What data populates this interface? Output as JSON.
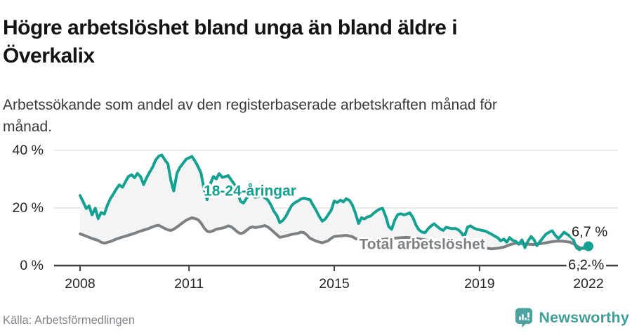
{
  "title": {
    "line1": "Högre arbetslöshet bland unga än bland äldre i",
    "line2": "Överkalix"
  },
  "subtitle": {
    "line1": "Arbetssökande som andel av den registerbaserade arbetskraften månad för",
    "line2": "månad."
  },
  "footer": {
    "source": "Källa: Arbetsförmedlingen",
    "brand": "Newsworthy",
    "brand_color": "#3f9e9a",
    "brand_icon": "newsworthy-pin-barchart-icon",
    "brand_icon_color": "#4aa3a0"
  },
  "colors": {
    "young_line": "#12a192",
    "total_line": "#7d8184",
    "between_area": "#f4f4f5",
    "grid": "#e3e3e3",
    "axis": "#404040",
    "tick_text": "#262626",
    "end_label_text": "#1c1c1c"
  },
  "chart_data": {
    "type": "line",
    "y_unit": "%",
    "grid": "horizontal",
    "legend_position": "inline-labels",
    "xlim": [
      2008,
      2022.1
    ],
    "ylim": [
      0,
      44
    ],
    "x_tick_values": [
      2008,
      2011,
      2015,
      2019,
      2022
    ],
    "x_tick_labels": [
      "2008",
      "2011",
      "2015",
      "2019",
      "2022"
    ],
    "y_tick_values": [
      0,
      20,
      40
    ],
    "y_tick_labels": [
      "0 %",
      "20 %",
      "40 %"
    ],
    "fill_between_series": true,
    "series": [
      {
        "name": "18-24-åringar",
        "color": "#12a192",
        "end_label": "6,7 %",
        "end_value": 6.7,
        "end_dot": true,
        "end_label_offset": [
          -24,
          -14
        ],
        "label_pos": {
          "x": 2012.68,
          "y": 25.9
        },
        "points": [
          [
            2008.0,
            24.3
          ],
          [
            2008.08,
            22.3
          ],
          [
            2008.17,
            19.8
          ],
          [
            2008.25,
            20.7
          ],
          [
            2008.33,
            17.6
          ],
          [
            2008.42,
            19.9
          ],
          [
            2008.5,
            16.3
          ],
          [
            2008.58,
            18.4
          ],
          [
            2008.67,
            17.9
          ],
          [
            2008.75,
            20.9
          ],
          [
            2008.83,
            23.1
          ],
          [
            2008.92,
            24.9
          ],
          [
            2009.0,
            26.6
          ],
          [
            2009.08,
            28.0
          ],
          [
            2009.17,
            27.2
          ],
          [
            2009.25,
            29.1
          ],
          [
            2009.33,
            30.9
          ],
          [
            2009.42,
            31.5
          ],
          [
            2009.5,
            30.5
          ],
          [
            2009.58,
            32.0
          ],
          [
            2009.67,
            30.8
          ],
          [
            2009.75,
            28.1
          ],
          [
            2009.83,
            30.4
          ],
          [
            2009.92,
            32.5
          ],
          [
            2010.0,
            34.2
          ],
          [
            2010.08,
            36.6
          ],
          [
            2010.17,
            38.0
          ],
          [
            2010.25,
            38.4
          ],
          [
            2010.33,
            36.8
          ],
          [
            2010.42,
            35.3
          ],
          [
            2010.5,
            29.6
          ],
          [
            2010.58,
            25.9
          ],
          [
            2010.67,
            32.1
          ],
          [
            2010.75,
            34.1
          ],
          [
            2010.83,
            35.4
          ],
          [
            2010.92,
            36.9
          ],
          [
            2011.0,
            37.4
          ],
          [
            2011.08,
            37.9
          ],
          [
            2011.17,
            36.2
          ],
          [
            2011.25,
            34.3
          ],
          [
            2011.33,
            32.1
          ],
          [
            2011.42,
            26.2
          ],
          [
            2011.5,
            22.9
          ],
          [
            2011.58,
            28.1
          ],
          [
            2011.67,
            30.9
          ],
          [
            2011.75,
            30.1
          ],
          [
            2011.83,
            31.9
          ],
          [
            2011.92,
            30.6
          ],
          [
            2012.0,
            30.9
          ],
          [
            2012.08,
            31.2
          ],
          [
            2012.17,
            29.6
          ],
          [
            2012.25,
            28.2
          ],
          [
            2012.33,
            25.6
          ],
          [
            2012.42,
            22.3
          ],
          [
            2012.5,
            21.7
          ],
          [
            2012.58,
            23.3
          ],
          [
            2012.67,
            24.6
          ],
          [
            2012.75,
            24.1
          ],
          [
            2012.83,
            23.7
          ],
          [
            2012.92,
            24.0
          ],
          [
            2013.0,
            24.2
          ],
          [
            2013.08,
            23.6
          ],
          [
            2013.17,
            22.8
          ],
          [
            2013.25,
            21.2
          ],
          [
            2013.33,
            19.0
          ],
          [
            2013.42,
            17.4
          ],
          [
            2013.5,
            14.9
          ],
          [
            2013.58,
            15.6
          ],
          [
            2013.67,
            17.1
          ],
          [
            2013.75,
            19.1
          ],
          [
            2013.83,
            20.9
          ],
          [
            2013.92,
            21.9
          ],
          [
            2014.0,
            22.4
          ],
          [
            2014.08,
            23.1
          ],
          [
            2014.17,
            23.4
          ],
          [
            2014.25,
            23.1
          ],
          [
            2014.33,
            22.9
          ],
          [
            2014.42,
            20.9
          ],
          [
            2014.5,
            19.2
          ],
          [
            2014.58,
            17.2
          ],
          [
            2014.67,
            15.4
          ],
          [
            2014.75,
            16.1
          ],
          [
            2014.83,
            17.6
          ],
          [
            2014.92,
            19.3
          ],
          [
            2015.0,
            22.4
          ],
          [
            2015.08,
            21.9
          ],
          [
            2015.17,
            22.7
          ],
          [
            2015.25,
            22.1
          ],
          [
            2015.33,
            23.2
          ],
          [
            2015.42,
            22.6
          ],
          [
            2015.5,
            21.0
          ],
          [
            2015.58,
            18.3
          ],
          [
            2015.67,
            14.6
          ],
          [
            2015.75,
            16.6
          ],
          [
            2015.83,
            16.2
          ],
          [
            2015.92,
            16.9
          ],
          [
            2016.0,
            17.2
          ],
          [
            2016.08,
            18.1
          ],
          [
            2016.17,
            19.0
          ],
          [
            2016.25,
            19.6
          ],
          [
            2016.33,
            19.9
          ],
          [
            2016.42,
            17.0
          ],
          [
            2016.5,
            13.5
          ],
          [
            2016.58,
            12.6
          ],
          [
            2016.67,
            15.9
          ],
          [
            2016.75,
            17.7
          ],
          [
            2016.83,
            18.0
          ],
          [
            2016.92,
            17.6
          ],
          [
            2017.0,
            17.9
          ],
          [
            2017.08,
            18.3
          ],
          [
            2017.17,
            16.6
          ],
          [
            2017.25,
            14.1
          ],
          [
            2017.33,
            12.4
          ],
          [
            2017.42,
            11.6
          ],
          [
            2017.5,
            11.4
          ],
          [
            2017.58,
            12.7
          ],
          [
            2017.67,
            13.8
          ],
          [
            2017.75,
            14.5
          ],
          [
            2017.83,
            13.6
          ],
          [
            2017.92,
            12.7
          ],
          [
            2018.0,
            12.2
          ],
          [
            2018.08,
            13.3
          ],
          [
            2018.17,
            13.0
          ],
          [
            2018.25,
            12.8
          ],
          [
            2018.33,
            12.9
          ],
          [
            2018.42,
            12.4
          ],
          [
            2018.5,
            11.4
          ],
          [
            2018.58,
            9.9
          ],
          [
            2018.67,
            13.3
          ],
          [
            2018.75,
            13.8
          ],
          [
            2018.83,
            13.1
          ],
          [
            2018.92,
            12.6
          ],
          [
            2019.0,
            12.4
          ],
          [
            2019.08,
            12.2
          ],
          [
            2019.17,
            11.9
          ],
          [
            2019.25,
            11.4
          ],
          [
            2019.33,
            10.9
          ],
          [
            2019.42,
            10.2
          ],
          [
            2019.5,
            9.7
          ],
          [
            2019.58,
            8.6
          ],
          [
            2019.67,
            9.2
          ],
          [
            2019.75,
            8.1
          ],
          [
            2019.83,
            9.7
          ],
          [
            2019.92,
            8.7
          ],
          [
            2020.0,
            8.4
          ],
          [
            2020.08,
            7.4
          ],
          [
            2020.17,
            8.9
          ],
          [
            2020.25,
            6.2
          ],
          [
            2020.33,
            8.4
          ],
          [
            2020.42,
            10.1
          ],
          [
            2020.5,
            9.0
          ],
          [
            2020.58,
            6.9
          ],
          [
            2020.67,
            8.4
          ],
          [
            2020.75,
            9.7
          ],
          [
            2020.83,
            10.9
          ],
          [
            2020.92,
            11.6
          ],
          [
            2021.0,
            12.1
          ],
          [
            2021.08,
            10.6
          ],
          [
            2021.17,
            9.4
          ],
          [
            2021.25,
            10.4
          ],
          [
            2021.33,
            11.6
          ],
          [
            2021.42,
            10.8
          ],
          [
            2021.5,
            10.1
          ],
          [
            2021.58,
            9.1
          ],
          [
            2021.67,
            6.2
          ],
          [
            2021.75,
            5.5
          ],
          [
            2021.83,
            6.1
          ],
          [
            2021.92,
            6.3
          ],
          [
            2022.0,
            6.7
          ]
        ]
      },
      {
        "name": "Total arbetslöshet",
        "color": "#7d8184",
        "end_label": "6,2 %",
        "end_value": 6.2,
        "end_dot": false,
        "end_label_offset": [
          -33,
          31
        ],
        "label_pos": {
          "x": 2017.42,
          "y": 7.3
        },
        "points": [
          [
            2008.0,
            11.0
          ],
          [
            2008.17,
            10.2
          ],
          [
            2008.33,
            9.4
          ],
          [
            2008.5,
            8.7
          ],
          [
            2008.58,
            8.1
          ],
          [
            2008.67,
            7.8
          ],
          [
            2008.83,
            8.3
          ],
          [
            2009.0,
            9.2
          ],
          [
            2009.17,
            9.9
          ],
          [
            2009.33,
            10.5
          ],
          [
            2009.5,
            11.2
          ],
          [
            2009.67,
            12.0
          ],
          [
            2009.83,
            12.6
          ],
          [
            2010.0,
            13.4
          ],
          [
            2010.08,
            13.8
          ],
          [
            2010.17,
            14.0
          ],
          [
            2010.25,
            13.4
          ],
          [
            2010.33,
            12.9
          ],
          [
            2010.42,
            12.4
          ],
          [
            2010.5,
            12.2
          ],
          [
            2010.58,
            12.6
          ],
          [
            2010.67,
            13.4
          ],
          [
            2010.83,
            14.9
          ],
          [
            2010.92,
            15.7
          ],
          [
            2011.0,
            16.2
          ],
          [
            2011.08,
            16.6
          ],
          [
            2011.17,
            16.3
          ],
          [
            2011.25,
            15.9
          ],
          [
            2011.33,
            14.8
          ],
          [
            2011.42,
            13.0
          ],
          [
            2011.5,
            11.9
          ],
          [
            2011.58,
            11.7
          ],
          [
            2011.67,
            12.1
          ],
          [
            2011.75,
            12.6
          ],
          [
            2011.83,
            12.8
          ],
          [
            2011.92,
            13.0
          ],
          [
            2012.0,
            13.3
          ],
          [
            2012.08,
            13.8
          ],
          [
            2012.17,
            13.4
          ],
          [
            2012.25,
            12.6
          ],
          [
            2012.33,
            11.7
          ],
          [
            2012.42,
            11.1
          ],
          [
            2012.5,
            11.4
          ],
          [
            2012.58,
            12.2
          ],
          [
            2012.67,
            13.1
          ],
          [
            2012.75,
            13.4
          ],
          [
            2012.83,
            13.2
          ],
          [
            2012.92,
            13.4
          ],
          [
            2013.0,
            13.6
          ],
          [
            2013.08,
            13.9
          ],
          [
            2013.17,
            13.4
          ],
          [
            2013.25,
            12.6
          ],
          [
            2013.33,
            11.7
          ],
          [
            2013.42,
            10.7
          ],
          [
            2013.5,
            9.8
          ],
          [
            2013.58,
            10.0
          ],
          [
            2013.67,
            10.3
          ],
          [
            2013.83,
            10.8
          ],
          [
            2014.0,
            11.2
          ],
          [
            2014.08,
            11.6
          ],
          [
            2014.17,
            11.4
          ],
          [
            2014.25,
            10.6
          ],
          [
            2014.33,
            9.5
          ],
          [
            2014.5,
            8.5
          ],
          [
            2014.67,
            7.9
          ],
          [
            2014.83,
            8.6
          ],
          [
            2014.92,
            9.5
          ],
          [
            2015.0,
            10.1
          ],
          [
            2015.17,
            10.3
          ],
          [
            2015.33,
            10.5
          ],
          [
            2015.5,
            10.0
          ],
          [
            2015.58,
            9.4
          ],
          [
            2015.67,
            9.0
          ],
          [
            2015.83,
            8.7
          ],
          [
            2016.0,
            8.5
          ],
          [
            2016.25,
            8.9
          ],
          [
            2016.5,
            9.3
          ],
          [
            2016.75,
            9.6
          ],
          [
            2017.0,
            9.8
          ],
          [
            2017.25,
            9.4
          ],
          [
            2017.5,
            8.9
          ],
          [
            2017.75,
            8.5
          ],
          [
            2018.0,
            8.2
          ],
          [
            2018.25,
            7.8
          ],
          [
            2018.5,
            7.3
          ],
          [
            2018.75,
            7.0
          ],
          [
            2019.0,
            6.6
          ],
          [
            2019.17,
            6.1
          ],
          [
            2019.33,
            5.8
          ],
          [
            2019.5,
            6.0
          ],
          [
            2019.67,
            6.4
          ],
          [
            2019.83,
            7.2
          ],
          [
            2020.0,
            7.8
          ],
          [
            2020.17,
            7.6
          ],
          [
            2020.33,
            7.4
          ],
          [
            2020.5,
            7.3
          ],
          [
            2020.67,
            7.6
          ],
          [
            2020.83,
            7.9
          ],
          [
            2021.0,
            8.3
          ],
          [
            2021.17,
            8.5
          ],
          [
            2021.33,
            8.4
          ],
          [
            2021.5,
            8.1
          ],
          [
            2021.58,
            7.6
          ],
          [
            2021.67,
            6.9
          ],
          [
            2021.75,
            6.3
          ],
          [
            2021.83,
            6.0
          ],
          [
            2021.92,
            5.9
          ],
          [
            2022.0,
            6.2
          ],
          [
            2022.08,
            6.2
          ]
        ]
      }
    ]
  }
}
